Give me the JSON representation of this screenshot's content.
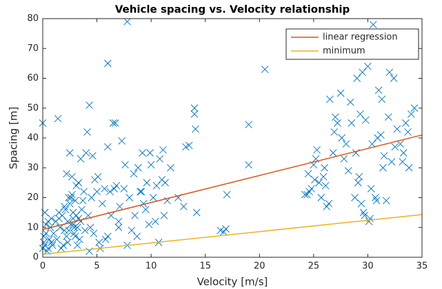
{
  "chart_data": {
    "type": "scatter",
    "title": "Vehicle spacing vs. Velocity relationship",
    "x_label": "Velocity [m/s]",
    "y_label": "Spacing [m]",
    "xlim": [
      0,
      35
    ],
    "ylim": [
      0,
      80
    ],
    "xticks": [
      0,
      5,
      10,
      15,
      20,
      25,
      30,
      35
    ],
    "yticks": [
      0,
      10,
      20,
      30,
      40,
      50,
      60,
      70,
      80
    ],
    "legend": "northeast",
    "series": [
      {
        "type": "scatter",
        "color": "#0072bd",
        "x": [
          0.0,
          0.1,
          0.2,
          0.3,
          0.4,
          0.5,
          0.6,
          0.7,
          0.8,
          0.9,
          0.2,
          0.5,
          0.1,
          0.3,
          0.8,
          0.0,
          1.0,
          1.2,
          1.3,
          1.5,
          1.6,
          1.8,
          1.9,
          2.0,
          2.1,
          2.2,
          2.3,
          2.4,
          2.5,
          2.6,
          2.7,
          2.8,
          2.9,
          3.0,
          3.1,
          3.2,
          3.3,
          3.4,
          3.5,
          3.6,
          3.8,
          3.9,
          1.4,
          1.7,
          2.0,
          2.3,
          2.5,
          2.7,
          2.9,
          3.1,
          3.3,
          3.5,
          2.6,
          2.8,
          3.0,
          1.5,
          2.2,
          3.7,
          2.4,
          2.8,
          3.2,
          4.0,
          4.2,
          4.3,
          4.5,
          4.7,
          5.0,
          5.2,
          5.5,
          5.7,
          6.0,
          6.2,
          6.5,
          6.8,
          7.0,
          7.3,
          7.5,
          7.8,
          8.0,
          4.1,
          4.4,
          4.8,
          5.3,
          5.8,
          6.0,
          6.3,
          6.7,
          7.1,
          7.6,
          4.3,
          6.0,
          7.8,
          4.6,
          5.1,
          6.6,
          7.0,
          8.2,
          8.5,
          8.8,
          9.0,
          9.2,
          9.5,
          9.8,
          10.0,
          10.2,
          10.5,
          10.8,
          11.0,
          11.2,
          11.5,
          11.8,
          8.7,
          9.3,
          9.9,
          10.4,
          11.1,
          8.4,
          9.6,
          10.7,
          11.3,
          9.1,
          13.2,
          13.5,
          14.0,
          14.0,
          14.1,
          14.2,
          16.4,
          16.7,
          16.9,
          17.0,
          19.0,
          19.0,
          20.5,
          12.5,
          13.0,
          24.2,
          24.5,
          24.8,
          25.0,
          25.2,
          25.5,
          25.7,
          26.0,
          26.2,
          26.5,
          26.8,
          27.0,
          24.6,
          25.3,
          25.9,
          26.4,
          26.9,
          24.4,
          25.1,
          26.1,
          27.2,
          27.5,
          27.8,
          28.0,
          28.2,
          28.5,
          28.8,
          29.0,
          29.2,
          29.4,
          29.5,
          29.6,
          29.8,
          30.0,
          30.2,
          30.4,
          30.5,
          30.7,
          30.9,
          31.0,
          31.2,
          31.4,
          31.5,
          31.7,
          31.9,
          32.0,
          32.2,
          32.4,
          32.5,
          32.7,
          28.4,
          29.1,
          29.7,
          30.3,
          30.8,
          31.3,
          27.6,
          28.9,
          29.3,
          30.1,
          33.0,
          33.3,
          33.5,
          33.8,
          34.0,
          34.3,
          33.2,
          33.7
        ],
        "values": [
          3,
          5,
          4,
          8,
          2,
          12,
          6,
          10,
          13,
          4,
          15,
          3,
          7,
          11,
          5,
          45,
          8,
          12,
          6,
          15,
          10,
          14,
          4,
          9,
          16,
          7,
          12,
          20,
          18,
          11,
          21,
          13,
          8,
          19,
          14,
          10,
          25,
          6,
          12,
          16,
          22,
          9,
          46.5,
          3,
          17,
          5,
          35,
          27,
          10,
          24,
          13,
          33,
          20,
          15,
          7,
          13,
          28,
          19,
          9,
          11,
          4,
          35,
          14,
          51,
          20,
          8,
          22,
          5,
          18,
          23,
          65,
          22,
          45,
          24,
          12,
          39,
          23,
          79,
          20,
          42,
          10,
          26,
          3,
          6,
          37,
          14,
          45,
          17,
          31,
          2,
          7,
          4,
          34,
          27,
          23,
          10,
          9,
          14,
          30,
          22,
          35,
          16,
          11,
          31,
          20,
          24,
          33,
          26,
          14,
          19,
          30,
          7,
          18,
          35,
          12,
          36,
          28,
          25,
          5,
          25,
          22,
          37,
          37.5,
          50,
          48,
          43,
          15,
          9,
          8.5,
          9.5,
          21,
          44.5,
          31,
          63,
          20,
          17,
          21,
          28,
          23,
          31,
          33,
          25,
          20,
          30,
          17,
          53,
          35,
          47,
          22,
          36,
          27,
          18,
          42,
          21,
          26,
          24,
          45,
          55,
          33,
          38,
          29,
          45,
          20,
          60,
          27,
          18,
          62,
          15,
          46,
          64,
          13,
          38,
          78,
          20,
          40,
          56,
          41,
          30,
          34,
          19,
          47,
          62,
          32,
          60,
          37,
          43,
          52,
          25,
          14,
          23,
          19,
          53,
          40,
          35,
          48,
          12,
          38,
          35,
          45,
          30,
          48,
          50,
          32,
          42
        ]
      },
      {
        "type": "line",
        "name": "linear regression",
        "color": "#d95319",
        "x": [
          0,
          35
        ],
        "values": [
          9.3,
          41
        ]
      },
      {
        "type": "line",
        "name": "minimum",
        "color": "#edb120",
        "x": [
          0,
          35
        ],
        "values": [
          1,
          14.3
        ]
      }
    ]
  }
}
